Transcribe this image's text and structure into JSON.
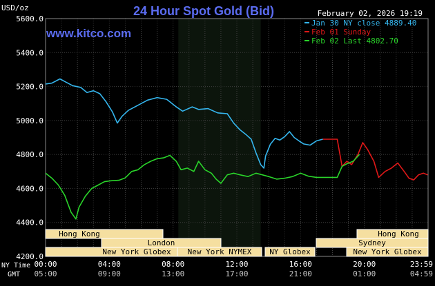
{
  "header": {
    "units": "USD/oz",
    "title": "24 Hour Spot Gold (Bid)",
    "timestamp": "February 02, 2026 19:19",
    "site": "www.kitco.com"
  },
  "colors": {
    "background": "#000000",
    "plot_bg": "#000000",
    "nymex_shade": "#0c150c",
    "grid": "#3f3f3f",
    "axis_text": "#ffffff",
    "title": "#5b6cf0",
    "site": "#5b6cf0",
    "jan30": "#35b6ee",
    "feb01": "#e01818",
    "feb02": "#2ad42a",
    "band_fill": "#f5dfa0",
    "band_border": "#ffffff",
    "band_text": "#000000"
  },
  "legend": [
    {
      "text": "Jan 30 NY close 4889.40",
      "color": "#35b6ee"
    },
    {
      "text": "Feb 01 Sunday",
      "color": "#e01818"
    },
    {
      "text": "Feb 02 Last 4802.70",
      "color": "#2ad42a"
    }
  ],
  "axis": {
    "y_ticks": [
      "5600.0",
      "5400.0",
      "5200.0",
      "5000.0",
      "4800.0",
      "4600.0",
      "4400.0",
      "4200.0"
    ],
    "x_labels_ny": [
      "00:00",
      "04:00",
      "08:00",
      "12:00",
      "16:00",
      "20:00",
      "23:59"
    ],
    "x_labels_gmt": [
      "05:00",
      "09:00",
      "13:00",
      "17:00",
      "21:00",
      "01:00",
      "04:59"
    ],
    "ny_time_label": "NY Time",
    "gmt_label": "GMT"
  },
  "sessions": [
    {
      "label": "Hong Kong"
    },
    {
      "label": "London"
    },
    {
      "label": "New York Globex"
    },
    {
      "label": "New York NYMEX"
    },
    {
      "label": "NY Globex"
    },
    {
      "label": "Hong Kong"
    },
    {
      "label": "Sydney"
    },
    {
      "label": "New York Globex"
    }
  ],
  "chart_data": {
    "type": "line",
    "ylim": [
      4200,
      5600
    ],
    "xlim_hours": [
      0,
      24
    ],
    "grid": true,
    "legend_position": "top-right",
    "series": [
      {
        "name": "Jan 30 NY close 4889.40",
        "color": "#35b6ee",
        "points": [
          [
            0,
            5215
          ],
          [
            0.4,
            5220
          ],
          [
            0.9,
            5245
          ],
          [
            1.3,
            5225
          ],
          [
            1.7,
            5205
          ],
          [
            2.2,
            5195
          ],
          [
            2.6,
            5165
          ],
          [
            3.0,
            5175
          ],
          [
            3.4,
            5158
          ],
          [
            3.8,
            5110
          ],
          [
            4.2,
            5050
          ],
          [
            4.5,
            4985
          ],
          [
            4.8,
            5025
          ],
          [
            5.2,
            5060
          ],
          [
            5.8,
            5090
          ],
          [
            6.4,
            5120
          ],
          [
            7.0,
            5135
          ],
          [
            7.6,
            5125
          ],
          [
            7.8,
            5110
          ],
          [
            8.2,
            5080
          ],
          [
            8.6,
            5055
          ],
          [
            9.2,
            5080
          ],
          [
            9.6,
            5065
          ],
          [
            10.2,
            5070
          ],
          [
            10.8,
            5045
          ],
          [
            11.4,
            5040
          ],
          [
            11.8,
            4985
          ],
          [
            12.2,
            4945
          ],
          [
            12.6,
            4915
          ],
          [
            12.9,
            4890
          ],
          [
            13.2,
            4810
          ],
          [
            13.5,
            4740
          ],
          [
            13.7,
            4720
          ],
          [
            13.8,
            4790
          ],
          [
            14.1,
            4860
          ],
          [
            14.4,
            4895
          ],
          [
            14.7,
            4885
          ],
          [
            15.0,
            4905
          ],
          [
            15.3,
            4935
          ],
          [
            15.6,
            4900
          ],
          [
            15.9,
            4880
          ],
          [
            16.2,
            4862
          ],
          [
            16.6,
            4855
          ],
          [
            17.0,
            4880
          ],
          [
            17.4,
            4890
          ]
        ]
      },
      {
        "name": "Feb 01 Sunday",
        "color": "#e01818",
        "points": [
          [
            17.4,
            4890
          ],
          [
            18.3,
            4890
          ],
          [
            18.6,
            4730
          ],
          [
            18.9,
            4760
          ],
          [
            19.2,
            4740
          ],
          [
            19.6,
            4800
          ],
          [
            19.9,
            4870
          ],
          [
            20.2,
            4830
          ],
          [
            20.6,
            4760
          ],
          [
            20.9,
            4665
          ],
          [
            21.3,
            4700
          ],
          [
            21.7,
            4720
          ],
          [
            22.1,
            4750
          ],
          [
            22.5,
            4700
          ],
          [
            22.8,
            4660
          ],
          [
            23.1,
            4650
          ],
          [
            23.4,
            4680
          ],
          [
            23.7,
            4690
          ],
          [
            23.98,
            4680
          ]
        ]
      },
      {
        "name": "Feb 02 Last 4802.70",
        "color": "#2ad42a",
        "points": [
          [
            0,
            4690
          ],
          [
            0.4,
            4660
          ],
          [
            0.8,
            4620
          ],
          [
            1.2,
            4560
          ],
          [
            1.6,
            4460
          ],
          [
            1.9,
            4420
          ],
          [
            2.1,
            4490
          ],
          [
            2.5,
            4555
          ],
          [
            2.9,
            4600
          ],
          [
            3.3,
            4620
          ],
          [
            3.7,
            4640
          ],
          [
            4.1,
            4645
          ],
          [
            4.6,
            4648
          ],
          [
            5.0,
            4662
          ],
          [
            5.4,
            4700
          ],
          [
            5.8,
            4710
          ],
          [
            6.2,
            4740
          ],
          [
            6.6,
            4760
          ],
          [
            7.0,
            4775
          ],
          [
            7.4,
            4780
          ],
          [
            7.8,
            4795
          ],
          [
            8.2,
            4760
          ],
          [
            8.5,
            4710
          ],
          [
            8.9,
            4720
          ],
          [
            9.3,
            4700
          ],
          [
            9.6,
            4760
          ],
          [
            10.0,
            4710
          ],
          [
            10.4,
            4690
          ],
          [
            10.7,
            4655
          ],
          [
            11.0,
            4630
          ],
          [
            11.4,
            4680
          ],
          [
            11.8,
            4690
          ],
          [
            12.2,
            4680
          ],
          [
            12.7,
            4670
          ],
          [
            13.2,
            4690
          ],
          [
            13.6,
            4680
          ],
          [
            14.0,
            4670
          ],
          [
            14.5,
            4655
          ],
          [
            15.0,
            4660
          ],
          [
            15.5,
            4670
          ],
          [
            16.0,
            4690
          ],
          [
            16.5,
            4672
          ],
          [
            17.0,
            4665
          ],
          [
            17.6,
            4665
          ],
          [
            18.3,
            4665
          ],
          [
            18.6,
            4730
          ],
          [
            18.9,
            4745
          ],
          [
            19.3,
            4760
          ],
          [
            19.7,
            4800
          ]
        ]
      }
    ]
  }
}
